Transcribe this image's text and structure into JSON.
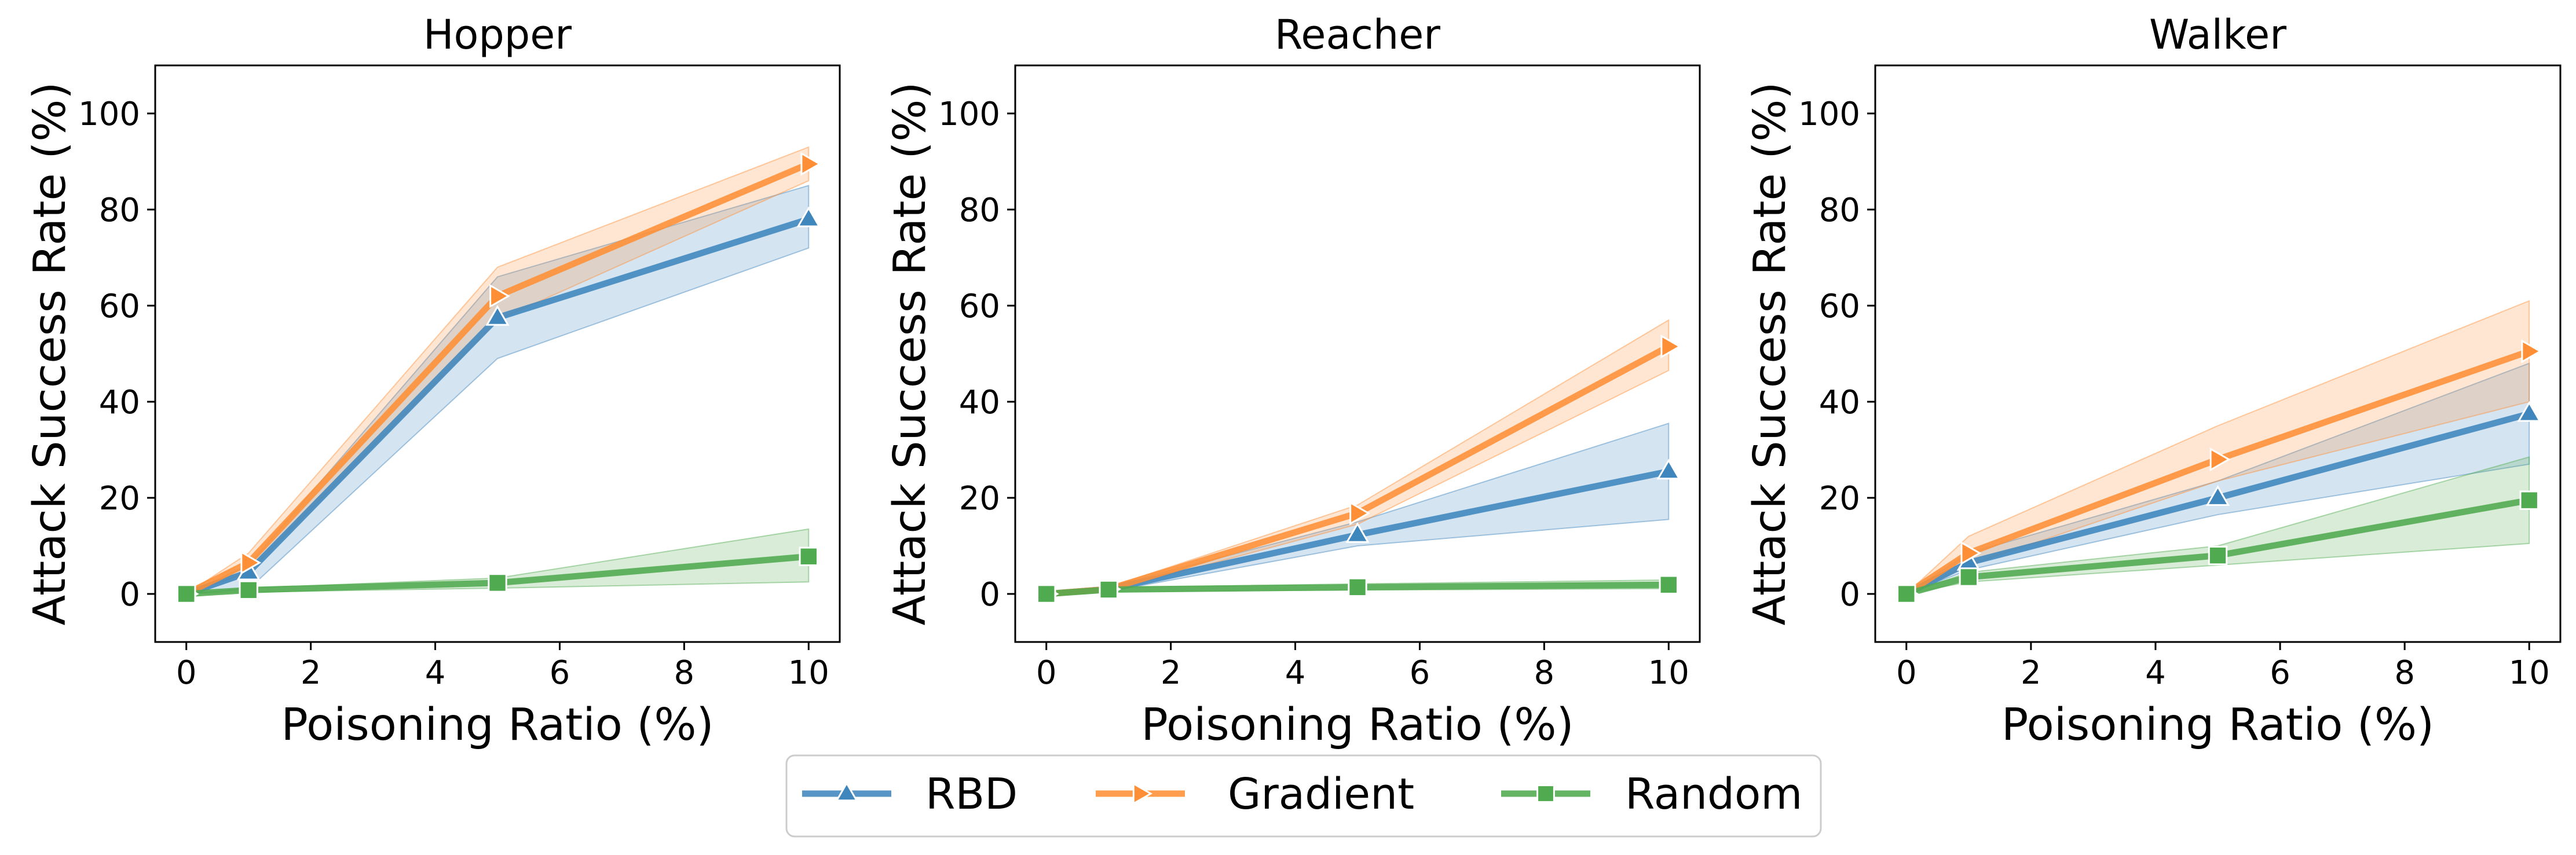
{
  "colors": {
    "RBD": "#3f86bd",
    "Gradient": "#fe8f36",
    "Random": "#50aa4f"
  },
  "legend": {
    "items": [
      {
        "name": "RBD",
        "marker": "triangle-up"
      },
      {
        "name": "Gradient",
        "marker": "triangle-right"
      },
      {
        "name": "Random",
        "marker": "square"
      }
    ]
  },
  "chart_data": [
    {
      "type": "line",
      "title": "Hopper",
      "xlabel": "Poisoning Ratio (%)",
      "ylabel": "Attack Success Rate (%)",
      "xlim": [
        -0.5,
        10.5
      ],
      "ylim": [
        -10,
        110
      ],
      "xticks": [
        0,
        2,
        4,
        6,
        8,
        10
      ],
      "yticks": [
        0,
        20,
        40,
        60,
        80,
        100
      ],
      "x": [
        0,
        1,
        5,
        10
      ],
      "series": [
        {
          "name": "RBD",
          "values": [
            0,
            4.5,
            57.5,
            78
          ],
          "lower": [
            0,
            1,
            49,
            72
          ],
          "upper": [
            0,
            6,
            66,
            85
          ]
        },
        {
          "name": "Gradient",
          "values": [
            0,
            6.5,
            62,
            89.5
          ],
          "lower": [
            0,
            4.5,
            57,
            86
          ],
          "upper": [
            0,
            8.5,
            68,
            93
          ]
        },
        {
          "name": "Random",
          "values": [
            0,
            0.8,
            2.3,
            7.8
          ],
          "lower": [
            0,
            0.4,
            1.2,
            2.5
          ],
          "upper": [
            0,
            1.2,
            3.3,
            13.5
          ]
        }
      ]
    },
    {
      "type": "line",
      "title": "Reacher",
      "xlabel": "Poisoning Ratio (%)",
      "ylabel": "Attack Success Rate (%)",
      "xlim": [
        -0.5,
        10.5
      ],
      "ylim": [
        -10,
        110
      ],
      "xticks": [
        0,
        2,
        4,
        6,
        8,
        10
      ],
      "yticks": [
        0,
        20,
        40,
        60,
        80,
        100
      ],
      "x": [
        0,
        1,
        5,
        10
      ],
      "series": [
        {
          "name": "RBD",
          "values": [
            0,
            1,
            12.3,
            25.5
          ],
          "lower": [
            0,
            0.5,
            10,
            15.5
          ],
          "upper": [
            0,
            1.5,
            15,
            35.5
          ]
        },
        {
          "name": "Gradient",
          "values": [
            0,
            1,
            16.8,
            51.5
          ],
          "lower": [
            0,
            0.6,
            14.5,
            46.5
          ],
          "upper": [
            0,
            1.4,
            18.5,
            57
          ]
        },
        {
          "name": "Random",
          "values": [
            0,
            0.9,
            1.4,
            1.9
          ],
          "lower": [
            0,
            0.5,
            0.8,
            1.1
          ],
          "upper": [
            0,
            1.3,
            2.1,
            2.9
          ]
        }
      ]
    },
    {
      "type": "line",
      "title": "Walker",
      "xlabel": "Poisoning Ratio (%)",
      "ylabel": "Attack Success Rate (%)",
      "xlim": [
        -0.5,
        10.5
      ],
      "ylim": [
        -10,
        110
      ],
      "xticks": [
        0,
        2,
        4,
        6,
        8,
        10
      ],
      "yticks": [
        0,
        20,
        40,
        60,
        80,
        100
      ],
      "x": [
        0,
        1,
        5,
        10
      ],
      "series": [
        {
          "name": "RBD",
          "values": [
            0,
            6.5,
            20,
            37.5
          ],
          "lower": [
            0,
            5,
            16.5,
            27
          ],
          "upper": [
            0,
            8.5,
            23.5,
            48
          ]
        },
        {
          "name": "Gradient",
          "values": [
            0,
            8.5,
            28,
            50.5
          ],
          "lower": [
            0,
            6,
            23.5,
            40
          ],
          "upper": [
            0,
            12,
            35,
            61
          ]
        },
        {
          "name": "Random",
          "values": [
            0,
            3.5,
            8,
            19.5
          ],
          "lower": [
            0,
            2.5,
            6,
            10.5
          ],
          "upper": [
            0,
            4.5,
            10,
            28.5
          ]
        }
      ]
    }
  ]
}
